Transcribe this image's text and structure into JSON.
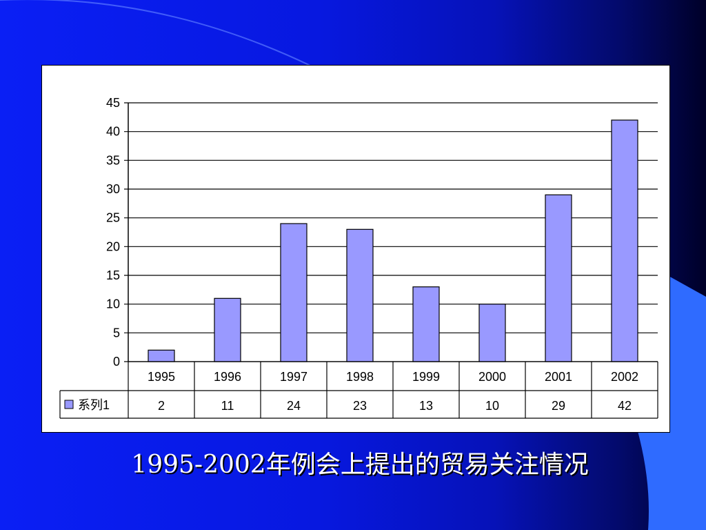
{
  "slide": {
    "title": "1995-2002年例会上提出的贸易关注情况"
  },
  "colors": {
    "bar_fill": "#9999ff",
    "bar_stroke": "#000000",
    "panel": "#ffffff"
  },
  "chart_data": {
    "type": "bar",
    "categories": [
      "1995",
      "1996",
      "1997",
      "1998",
      "1999",
      "2000",
      "2001",
      "2002"
    ],
    "series": [
      {
        "name": "系列1",
        "values": [
          2,
          11,
          24,
          23,
          13,
          10,
          29,
          42
        ]
      }
    ],
    "yticks": [
      0,
      5,
      10,
      15,
      20,
      25,
      30,
      35,
      40,
      45
    ],
    "ylim": [
      0,
      45
    ],
    "grid": true,
    "legend": "data-table-left",
    "data_table": true
  }
}
